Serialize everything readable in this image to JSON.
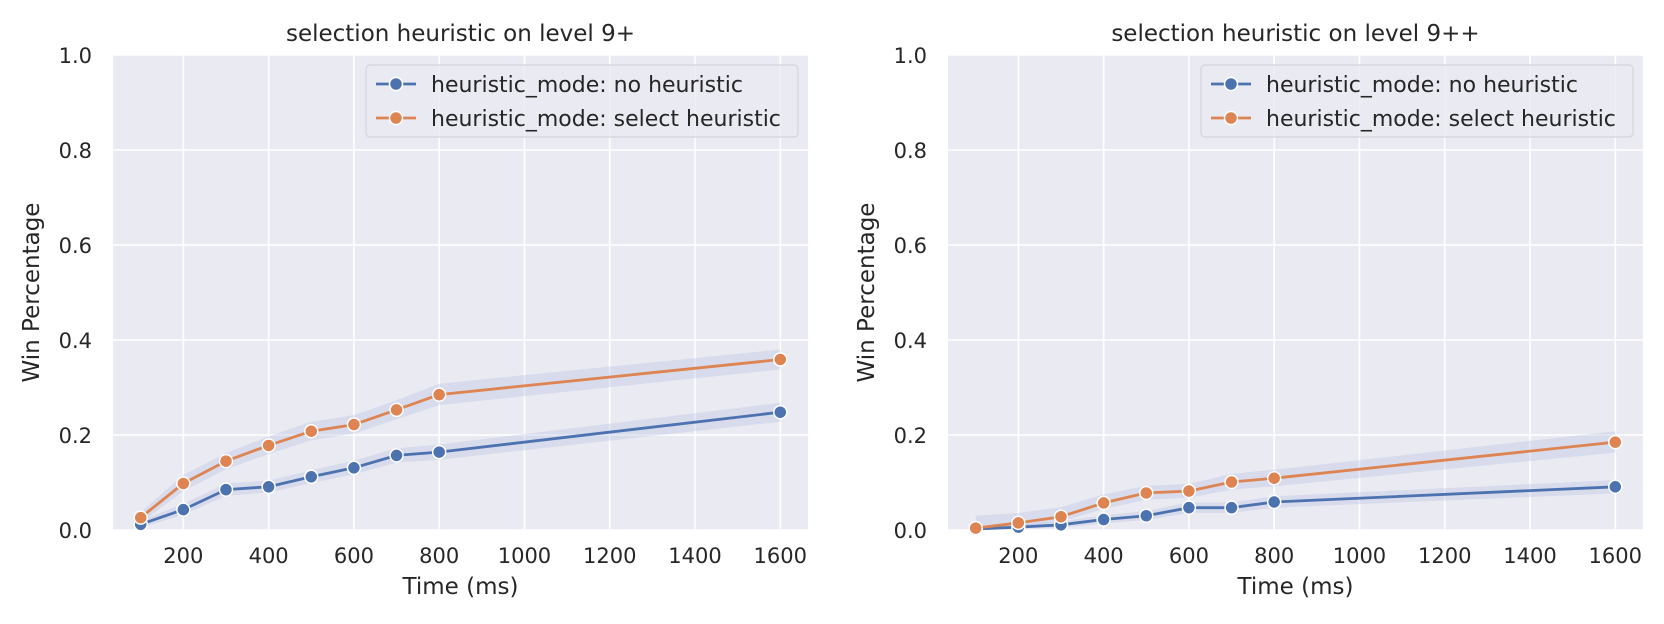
{
  "colors": {
    "background": "#ffffff",
    "plot_background": "#eaeaf2",
    "grid": "#ffffff",
    "no_heuristic": "#4c72b0",
    "select_heuristic": "#dd8452",
    "band": "#aebce0"
  },
  "chart_data": [
    {
      "type": "line",
      "title": "selection heuristic on level 9+",
      "xlabel": "Time (ms)",
      "ylabel": "Win Percentage",
      "xlim": [
        35,
        1665
      ],
      "ylim": [
        0.0,
        1.0
      ],
      "xticks": [
        200,
        400,
        600,
        800,
        1000,
        1200,
        1400,
        1600
      ],
      "yticks": [
        0.0,
        0.2,
        0.4,
        0.6,
        0.8,
        1.0
      ],
      "xtick_labels": [
        "200",
        "400",
        "600",
        "800",
        "1000",
        "1200",
        "1400",
        "1600"
      ],
      "ytick_labels": [
        "0.0",
        "0.2",
        "0.4",
        "0.6",
        "0.8",
        "1.0"
      ],
      "grid": true,
      "legend_position": "top-right",
      "x": [
        100,
        200,
        300,
        400,
        500,
        600,
        700,
        800,
        1600
      ],
      "series": [
        {
          "name": "heuristic_mode: no heuristic",
          "values": [
            0.012,
            0.043,
            0.085,
            0.091,
            0.112,
            0.131,
            0.157,
            0.164,
            0.248
          ],
          "ci_low": [
            0.005,
            0.032,
            0.072,
            0.079,
            0.099,
            0.117,
            0.142,
            0.148,
            0.228
          ],
          "ci_high": [
            0.02,
            0.055,
            0.098,
            0.104,
            0.126,
            0.146,
            0.172,
            0.18,
            0.268
          ]
        },
        {
          "name": "heuristic_mode: select heuristic",
          "values": [
            0.026,
            0.098,
            0.145,
            0.178,
            0.208,
            0.222,
            0.253,
            0.285,
            0.359
          ],
          "ci_low": [
            0.015,
            0.082,
            0.128,
            0.16,
            0.189,
            0.203,
            0.233,
            0.263,
            0.338
          ],
          "ci_high": [
            0.037,
            0.116,
            0.162,
            0.197,
            0.228,
            0.242,
            0.273,
            0.308,
            0.38
          ]
        }
      ]
    },
    {
      "type": "line",
      "title": "selection heuristic on level 9++",
      "xlabel": "Time (ms)",
      "ylabel": "Win Percentage",
      "xlim": [
        35,
        1665
      ],
      "ylim": [
        0.0,
        1.0
      ],
      "xticks": [
        200,
        400,
        600,
        800,
        1000,
        1200,
        1400,
        1600
      ],
      "yticks": [
        0.0,
        0.2,
        0.4,
        0.6,
        0.8,
        1.0
      ],
      "xtick_labels": [
        "200",
        "400",
        "600",
        "800",
        "1000",
        "1200",
        "1400",
        "1600"
      ],
      "ytick_labels": [
        "0.0",
        "0.2",
        "0.4",
        "0.6",
        "0.8",
        "1.0"
      ],
      "grid": true,
      "legend_position": "top-right",
      "x": [
        100,
        200,
        300,
        400,
        500,
        600,
        700,
        800,
        1600
      ],
      "series": [
        {
          "name": "heuristic_mode: no heuristic",
          "values": [
            0.002,
            0.006,
            0.011,
            0.022,
            0.03,
            0.047,
            0.047,
            0.059,
            0.091
          ],
          "ci_low": [
            0.0,
            0.002,
            0.005,
            0.014,
            0.021,
            0.036,
            0.036,
            0.047,
            0.077
          ],
          "ci_high": [
            0.006,
            0.011,
            0.018,
            0.031,
            0.04,
            0.058,
            0.058,
            0.071,
            0.105
          ]
        },
        {
          "name": "heuristic_mode: select heuristic",
          "values": [
            0.004,
            0.015,
            0.028,
            0.057,
            0.078,
            0.082,
            0.101,
            0.109,
            0.185
          ],
          "ci_low": [
            0.0,
            0.007,
            0.018,
            0.044,
            0.064,
            0.068,
            0.085,
            0.092,
            0.163
          ],
          "ci_high": [
            0.03,
            0.036,
            0.048,
            0.075,
            0.093,
            0.097,
            0.118,
            0.127,
            0.208
          ]
        }
      ]
    }
  ]
}
